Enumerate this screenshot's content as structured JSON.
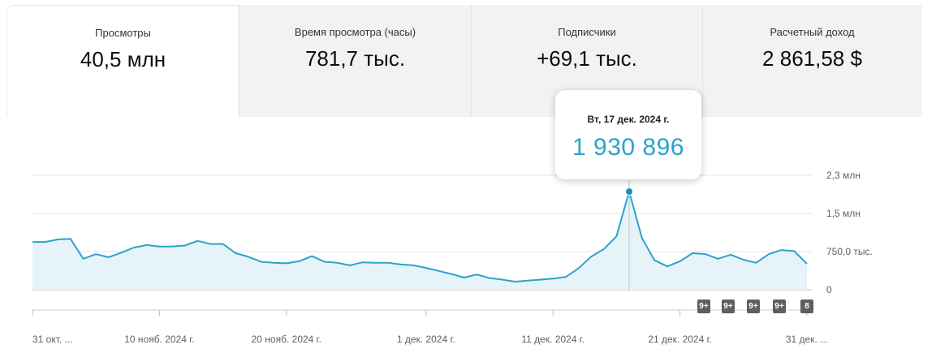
{
  "cards": [
    {
      "label": "Просмотры",
      "value": "40,5 млн"
    },
    {
      "label": "Время просмотра (часы)",
      "value": "781,7 тыс."
    },
    {
      "label": "Подписчики",
      "value": "+69,1 тыс."
    },
    {
      "label": "Расчетный доход",
      "value": "2 861,58 $"
    }
  ],
  "tooltip": {
    "date": "Вт, 17 дек. 2024 г.",
    "value": "1 930 896"
  },
  "badges": [
    "9+",
    "9+",
    "9+",
    "9+",
    "8"
  ],
  "colors": {
    "line": "#2ba3c9",
    "fill": "#e6f4fa",
    "tooltip_value": "#2ba3c9",
    "badge": "#5f5f5f"
  },
  "chart_data": {
    "type": "area",
    "y_ticks": [
      {
        "value": 0,
        "label": "0"
      },
      {
        "value": 750000,
        "label": "750,0 тыс."
      },
      {
        "value": 1500000,
        "label": "1,5 млн"
      },
      {
        "value": 2250000,
        "label": "2,3 млн"
      }
    ],
    "x_ticks": [
      {
        "day": 0,
        "label": "31 окт. ..."
      },
      {
        "day": 10,
        "label": "10 нояб. 2024 г."
      },
      {
        "day": 20,
        "label": "20 нояб. 2024 г."
      },
      {
        "day": 31,
        "label": "1 дек. 2024 г."
      },
      {
        "day": 41,
        "label": "11 дек. 2024 г."
      },
      {
        "day": 51,
        "label": "21 дек. 2024 г."
      },
      {
        "day": 61,
        "label": "31 дек. ..."
      }
    ],
    "highlight_index": 47,
    "ylim": [
      0,
      2250000
    ],
    "grid": true,
    "values": [
      940000,
      940000,
      990000,
      1000000,
      610000,
      700000,
      640000,
      730000,
      830000,
      880000,
      850000,
      850000,
      870000,
      960000,
      900000,
      900000,
      720000,
      650000,
      550000,
      530000,
      520000,
      560000,
      660000,
      550000,
      530000,
      480000,
      540000,
      530000,
      530000,
      500000,
      480000,
      430000,
      370000,
      310000,
      240000,
      300000,
      230000,
      200000,
      160000,
      180000,
      200000,
      220000,
      250000,
      420000,
      650000,
      800000,
      1050000,
      1930896,
      1020000,
      580000,
      460000,
      560000,
      720000,
      700000,
      610000,
      690000,
      590000,
      530000,
      700000,
      780000,
      760000,
      510000
    ]
  }
}
